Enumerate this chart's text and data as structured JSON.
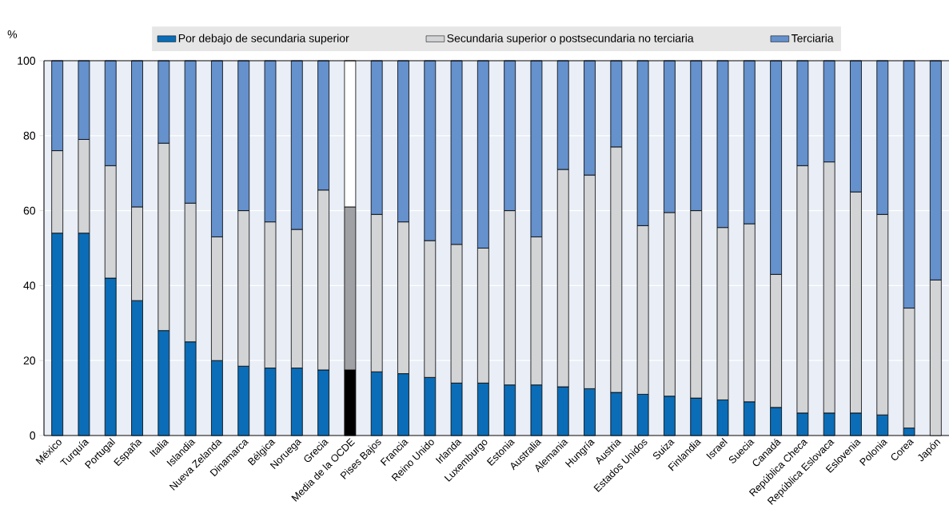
{
  "chart_data": {
    "type": "bar",
    "stacked": true,
    "ylabel": "%",
    "ylim": [
      0,
      100
    ],
    "yticks": [
      0,
      20,
      40,
      60,
      80,
      100
    ],
    "grid": true,
    "legend": "top",
    "categories": [
      "México",
      "Turquía",
      "Portugal",
      "España",
      "Italia",
      "Islandia",
      "Nueva Zelanda",
      "Dinamarca",
      "Bélgica",
      "Noruega",
      "Grecia",
      "Media de la OCDE",
      "Pises Bajos",
      "Francia",
      "Reino Unido",
      "Irlanda",
      "Luxemburgo",
      "Estonia",
      "Australia",
      "Alemania",
      "Hungría",
      "Austria",
      "Estados Unidos",
      "Suiza",
      "Finlandia",
      "Israel",
      "Suecia",
      "Canadá",
      "República Checa",
      "República Eslovaca",
      "Eslovenia",
      "Polonia",
      "Corea",
      "Japón"
    ],
    "series": [
      {
        "name": "Por debajo de secundaria superior",
        "color": "#0b6db7",
        "colors": [
          "#0b6db7",
          "#0b6db7",
          "#0b6db7",
          "#0b6db7",
          "#0b6db7",
          "#0b6db7",
          "#0b6db7",
          "#0b6db7",
          "#0b6db7",
          "#0b6db7",
          "#0b6db7",
          "#000000",
          "#0b6db7",
          "#0b6db7",
          "#0b6db7",
          "#0b6db7",
          "#0b6db7",
          "#0b6db7",
          "#0b6db7",
          "#0b6db7",
          "#0b6db7",
          "#0b6db7",
          "#0b6db7",
          "#0b6db7",
          "#0b6db7",
          "#0b6db7",
          "#0b6db7",
          "#0b6db7",
          "#0b6db7",
          "#0b6db7",
          "#0b6db7",
          "#0b6db7",
          "#0b6db7",
          "#0b6db7"
        ],
        "values": [
          54,
          54,
          42,
          36,
          28,
          25,
          20,
          18.5,
          18,
          18,
          17.5,
          17.5,
          17,
          16.5,
          15.5,
          14,
          14,
          13.5,
          13.5,
          13,
          12.5,
          11.5,
          11,
          10.5,
          10,
          9.5,
          9,
          7.5,
          6,
          6,
          6,
          5.5,
          2,
          null
        ]
      },
      {
        "name": "Secundaria superior o postsecundaria no terciaria",
        "color": "#d3d4d6",
        "colors": [
          "#d3d4d6",
          "#d3d4d6",
          "#d3d4d6",
          "#d3d4d6",
          "#d3d4d6",
          "#d3d4d6",
          "#d3d4d6",
          "#d3d4d6",
          "#d3d4d6",
          "#d3d4d6",
          "#d3d4d6",
          "#a0a1a4",
          "#d3d4d6",
          "#d3d4d6",
          "#d3d4d6",
          "#d3d4d6",
          "#d3d4d6",
          "#d3d4d6",
          "#d3d4d6",
          "#d3d4d6",
          "#d3d4d6",
          "#d3d4d6",
          "#d3d4d6",
          "#d3d4d6",
          "#d3d4d6",
          "#d3d4d6",
          "#d3d4d6",
          "#d3d4d6",
          "#d3d4d6",
          "#d3d4d6",
          "#d3d4d6",
          "#d3d4d6",
          "#d3d4d6",
          "#d3d4d6"
        ],
        "values": [
          22,
          25,
          30,
          25,
          50,
          37,
          33,
          41.5,
          39,
          37,
          48,
          43.5,
          42,
          40.5,
          36.5,
          37,
          36,
          46.5,
          39.5,
          58,
          57,
          65.5,
          45,
          49,
          50,
          46,
          47.5,
          35.5,
          66,
          67,
          59,
          53.5,
          32,
          41.5
        ]
      },
      {
        "name": "Terciaria",
        "color": "#6591cd",
        "colors": [
          "#6591cd",
          "#6591cd",
          "#6591cd",
          "#6591cd",
          "#6591cd",
          "#6591cd",
          "#6591cd",
          "#6591cd",
          "#6591cd",
          "#6591cd",
          "#6591cd",
          "#ffffff",
          "#6591cd",
          "#6591cd",
          "#6591cd",
          "#6591cd",
          "#6591cd",
          "#6591cd",
          "#6591cd",
          "#6591cd",
          "#6591cd",
          "#6591cd",
          "#6591cd",
          "#6591cd",
          "#6591cd",
          "#6591cd",
          "#6591cd",
          "#6591cd",
          "#6591cd",
          "#6591cd",
          "#6591cd",
          "#6591cd",
          "#6591cd",
          "#6591cd"
        ],
        "values": [
          24,
          21,
          28,
          39,
          22,
          38,
          47,
          40,
          43,
          45,
          34.5,
          39,
          41,
          43,
          48,
          49,
          50,
          40,
          47,
          29,
          30.5,
          23,
          44,
          40.5,
          40,
          44.5,
          43.5,
          57,
          28,
          27,
          35,
          41,
          66,
          58.5
        ]
      }
    ]
  }
}
